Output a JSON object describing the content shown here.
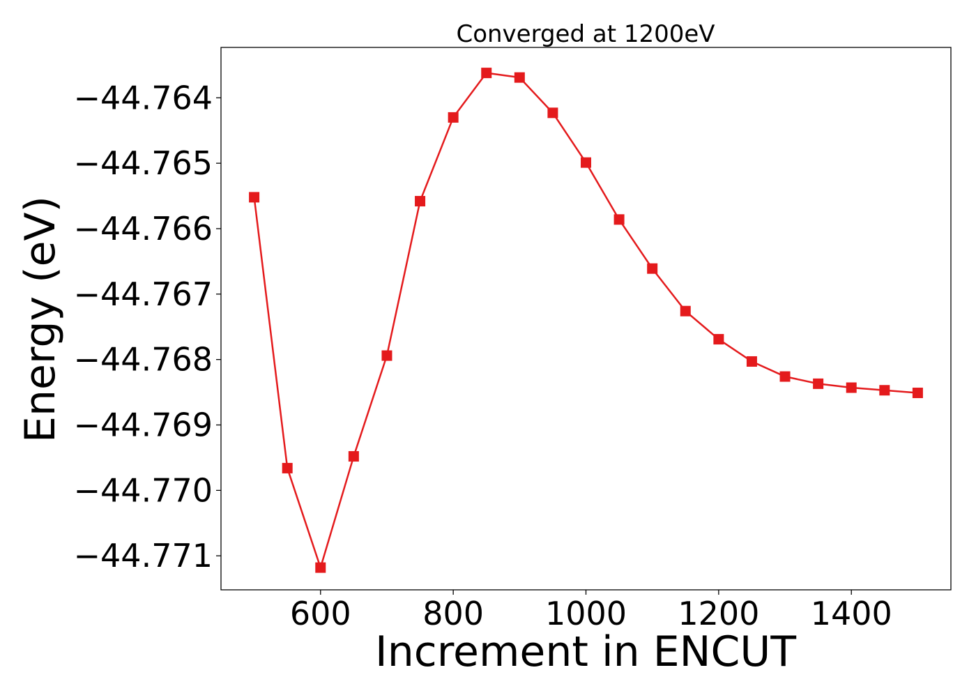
{
  "chart_data": {
    "type": "line",
    "title": "Converged at 1200eV",
    "xlabel": "Increment in ENCUT",
    "ylabel": "Energy (eV)",
    "xlim": [
      450,
      1550
    ],
    "ylim": [
      -44.77152,
      -44.76323
    ],
    "xticks": [
      {
        "value": 600,
        "label": "600"
      },
      {
        "value": 800,
        "label": "800"
      },
      {
        "value": 1000,
        "label": "1000"
      },
      {
        "value": 1200,
        "label": "1200"
      },
      {
        "value": 1400,
        "label": "1400"
      }
    ],
    "yticks": [
      {
        "value": -44.764,
        "label": "−44.764"
      },
      {
        "value": -44.765,
        "label": "−44.765"
      },
      {
        "value": -44.766,
        "label": "−44.766"
      },
      {
        "value": -44.767,
        "label": "−44.767"
      },
      {
        "value": -44.768,
        "label": "−44.768"
      },
      {
        "value": -44.769,
        "label": "−44.769"
      },
      {
        "value": -44.77,
        "label": "−44.770"
      },
      {
        "value": -44.771,
        "label": "−44.771"
      }
    ],
    "grid": false,
    "series": [
      {
        "color": "#e41a1c",
        "marker": "square",
        "x": [
          500,
          550,
          600,
          650,
          700,
          750,
          800,
          850,
          900,
          950,
          1000,
          1050,
          1100,
          1150,
          1200,
          1250,
          1300,
          1350,
          1400,
          1450,
          1500
        ],
        "y": [
          -44.76552,
          -44.76966,
          -44.77118,
          -44.76948,
          -44.76794,
          -44.76558,
          -44.7643,
          -44.76362,
          -44.76369,
          -44.76423,
          -44.76499,
          -44.76586,
          -44.76661,
          -44.76726,
          -44.76769,
          -44.76803,
          -44.76826,
          -44.76837,
          -44.76843,
          -44.76847,
          -44.76851
        ]
      }
    ]
  }
}
